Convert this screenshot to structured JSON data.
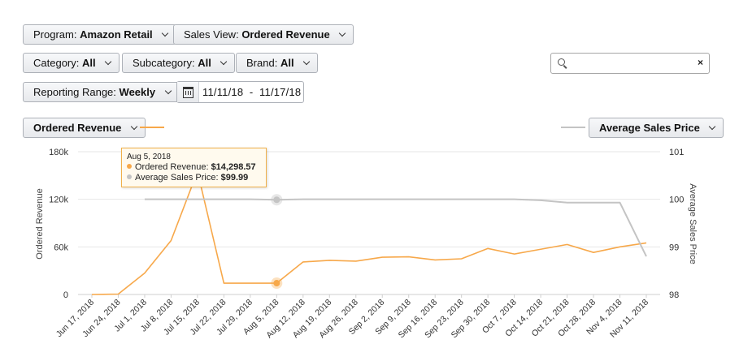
{
  "filters": {
    "program": {
      "label": "Program:",
      "value": "Amazon Retail"
    },
    "sales_view": {
      "label": "Sales View:",
      "value": "Ordered Revenue"
    },
    "category": {
      "label": "Category:",
      "value": "All"
    },
    "subcategory": {
      "label": "Subcategory:",
      "value": "All"
    },
    "brand": {
      "label": "Brand:",
      "value": "All"
    },
    "reporting_range": {
      "label": "Reporting Range:",
      "value": "Weekly"
    },
    "date_range": "11/11/18  -  11/17/18"
  },
  "search": {
    "value": "",
    "clear_symbol": "×"
  },
  "metric_selectors": {
    "left": {
      "value": "Ordered Revenue"
    },
    "right": {
      "value": "Average Sales Price"
    }
  },
  "colors": {
    "revenue": "#f7a84a",
    "asp": "#c4c4c4",
    "grid": "#e6e6e6"
  },
  "tooltip": {
    "date": "Aug 5, 2018",
    "line1_label": "Ordered Revenue:",
    "line1_value": "$14,298.57",
    "line2_label": "Average Sales Price:",
    "line2_value": "$99.99"
  },
  "chart_data": {
    "type": "line",
    "x": [
      "Jun 17, 2018",
      "Jun 24, 2018",
      "Jul 1, 2018",
      "Jul 8, 2018",
      "Jul 15, 2018",
      "Jul 22, 2018",
      "Jul 29, 2018",
      "Aug 5, 2018",
      "Aug 12, 2018",
      "Aug 19, 2018",
      "Aug 26, 2018",
      "Sep 2, 2018",
      "Sep 9, 2018",
      "Sep 16, 2018",
      "Sep 23, 2018",
      "Sep 30, 2018",
      "Oct 7, 2018",
      "Oct 14, 2018",
      "Oct 21, 2018",
      "Oct 28, 2018",
      "Nov 4, 2018",
      "Nov 11, 2018"
    ],
    "series": [
      {
        "name": "Ordered Revenue",
        "axis": "left",
        "color": "#f7a84a",
        "values": [
          0,
          500,
          27000,
          68000,
          155000,
          14300,
          14300,
          14298.57,
          41000,
          43000,
          42000,
          47000,
          47500,
          43500,
          45000,
          58000,
          51000,
          57000,
          63000,
          53000,
          60000,
          65000
        ]
      },
      {
        "name": "Average Sales Price",
        "axis": "right",
        "color": "#c4c4c4",
        "values": [
          null,
          null,
          100,
          100,
          100,
          100,
          100,
          99.99,
          100,
          100,
          100,
          100,
          100,
          100,
          100,
          100,
          100,
          99.98,
          99.93,
          99.93,
          99.93,
          98.8
        ]
      }
    ],
    "y_left": {
      "label": "Ordered Revenue",
      "min": 0,
      "max": 180000,
      "ticks": [
        "0",
        "60k",
        "120k",
        "180k"
      ],
      "tick_values": [
        0,
        60000,
        120000,
        180000
      ]
    },
    "y_right": {
      "label": "Average Sales Price",
      "min": 98,
      "max": 101,
      "ticks": [
        "98",
        "99",
        "100",
        "101"
      ],
      "tick_values": [
        98,
        99,
        100,
        101
      ]
    },
    "highlight_index": 7,
    "grid": true
  }
}
